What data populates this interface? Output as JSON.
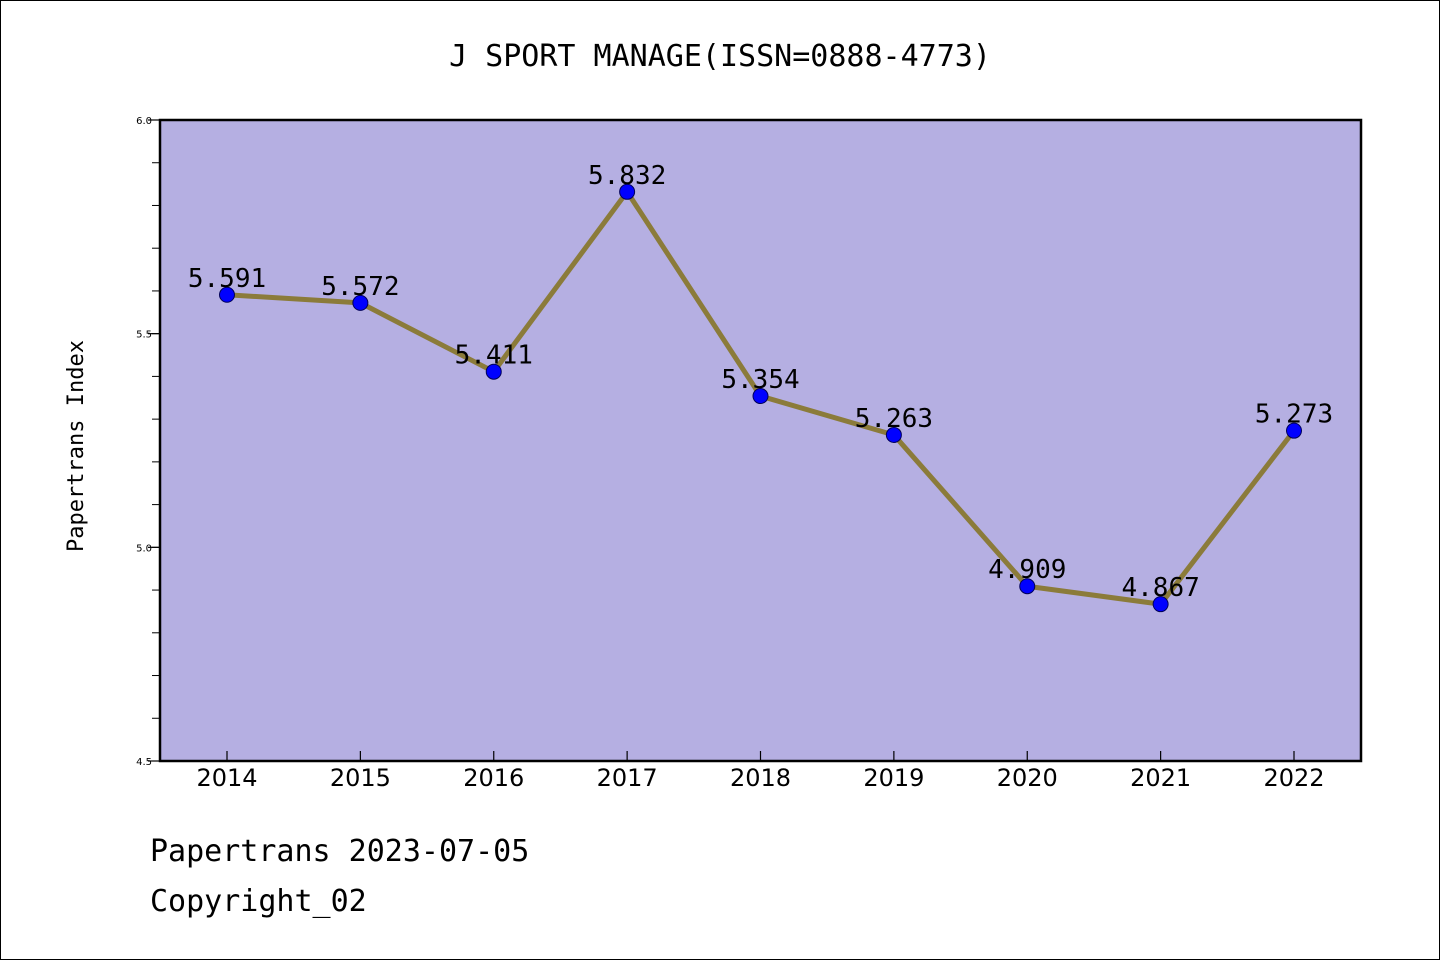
{
  "chart_data": {
    "type": "line",
    "title": "J SPORT MANAGE(ISSN=0888-4773)",
    "xlabel": "",
    "ylabel": "Papertrans Index",
    "categories": [
      "2014",
      "2015",
      "2016",
      "2017",
      "2018",
      "2019",
      "2020",
      "2021",
      "2022"
    ],
    "series": [
      {
        "values": [
          5.591,
          5.572,
          5.411,
          5.832,
          5.354,
          5.263,
          4.909,
          4.867,
          5.273
        ]
      }
    ],
    "data_labels": [
      "5.591",
      "5.572",
      "5.411",
      "5.832",
      "5.354",
      "5.263",
      "4.909",
      "4.867",
      "5.273"
    ],
    "ylim": [
      4.5,
      6.0
    ],
    "yticks": [
      4.5,
      5.0,
      5.5,
      6.0
    ],
    "ytick_labels": [
      "4.5",
      "5.0",
      "5.5",
      "6.0"
    ],
    "grid": false,
    "legend": "none",
    "colors": {
      "plot_background": "#b5afe2",
      "line": "#8b7b3a",
      "marker": "#0000ff"
    }
  },
  "footer": {
    "line1": "Papertrans 2023-07-05",
    "line2": "Copyright_02"
  }
}
